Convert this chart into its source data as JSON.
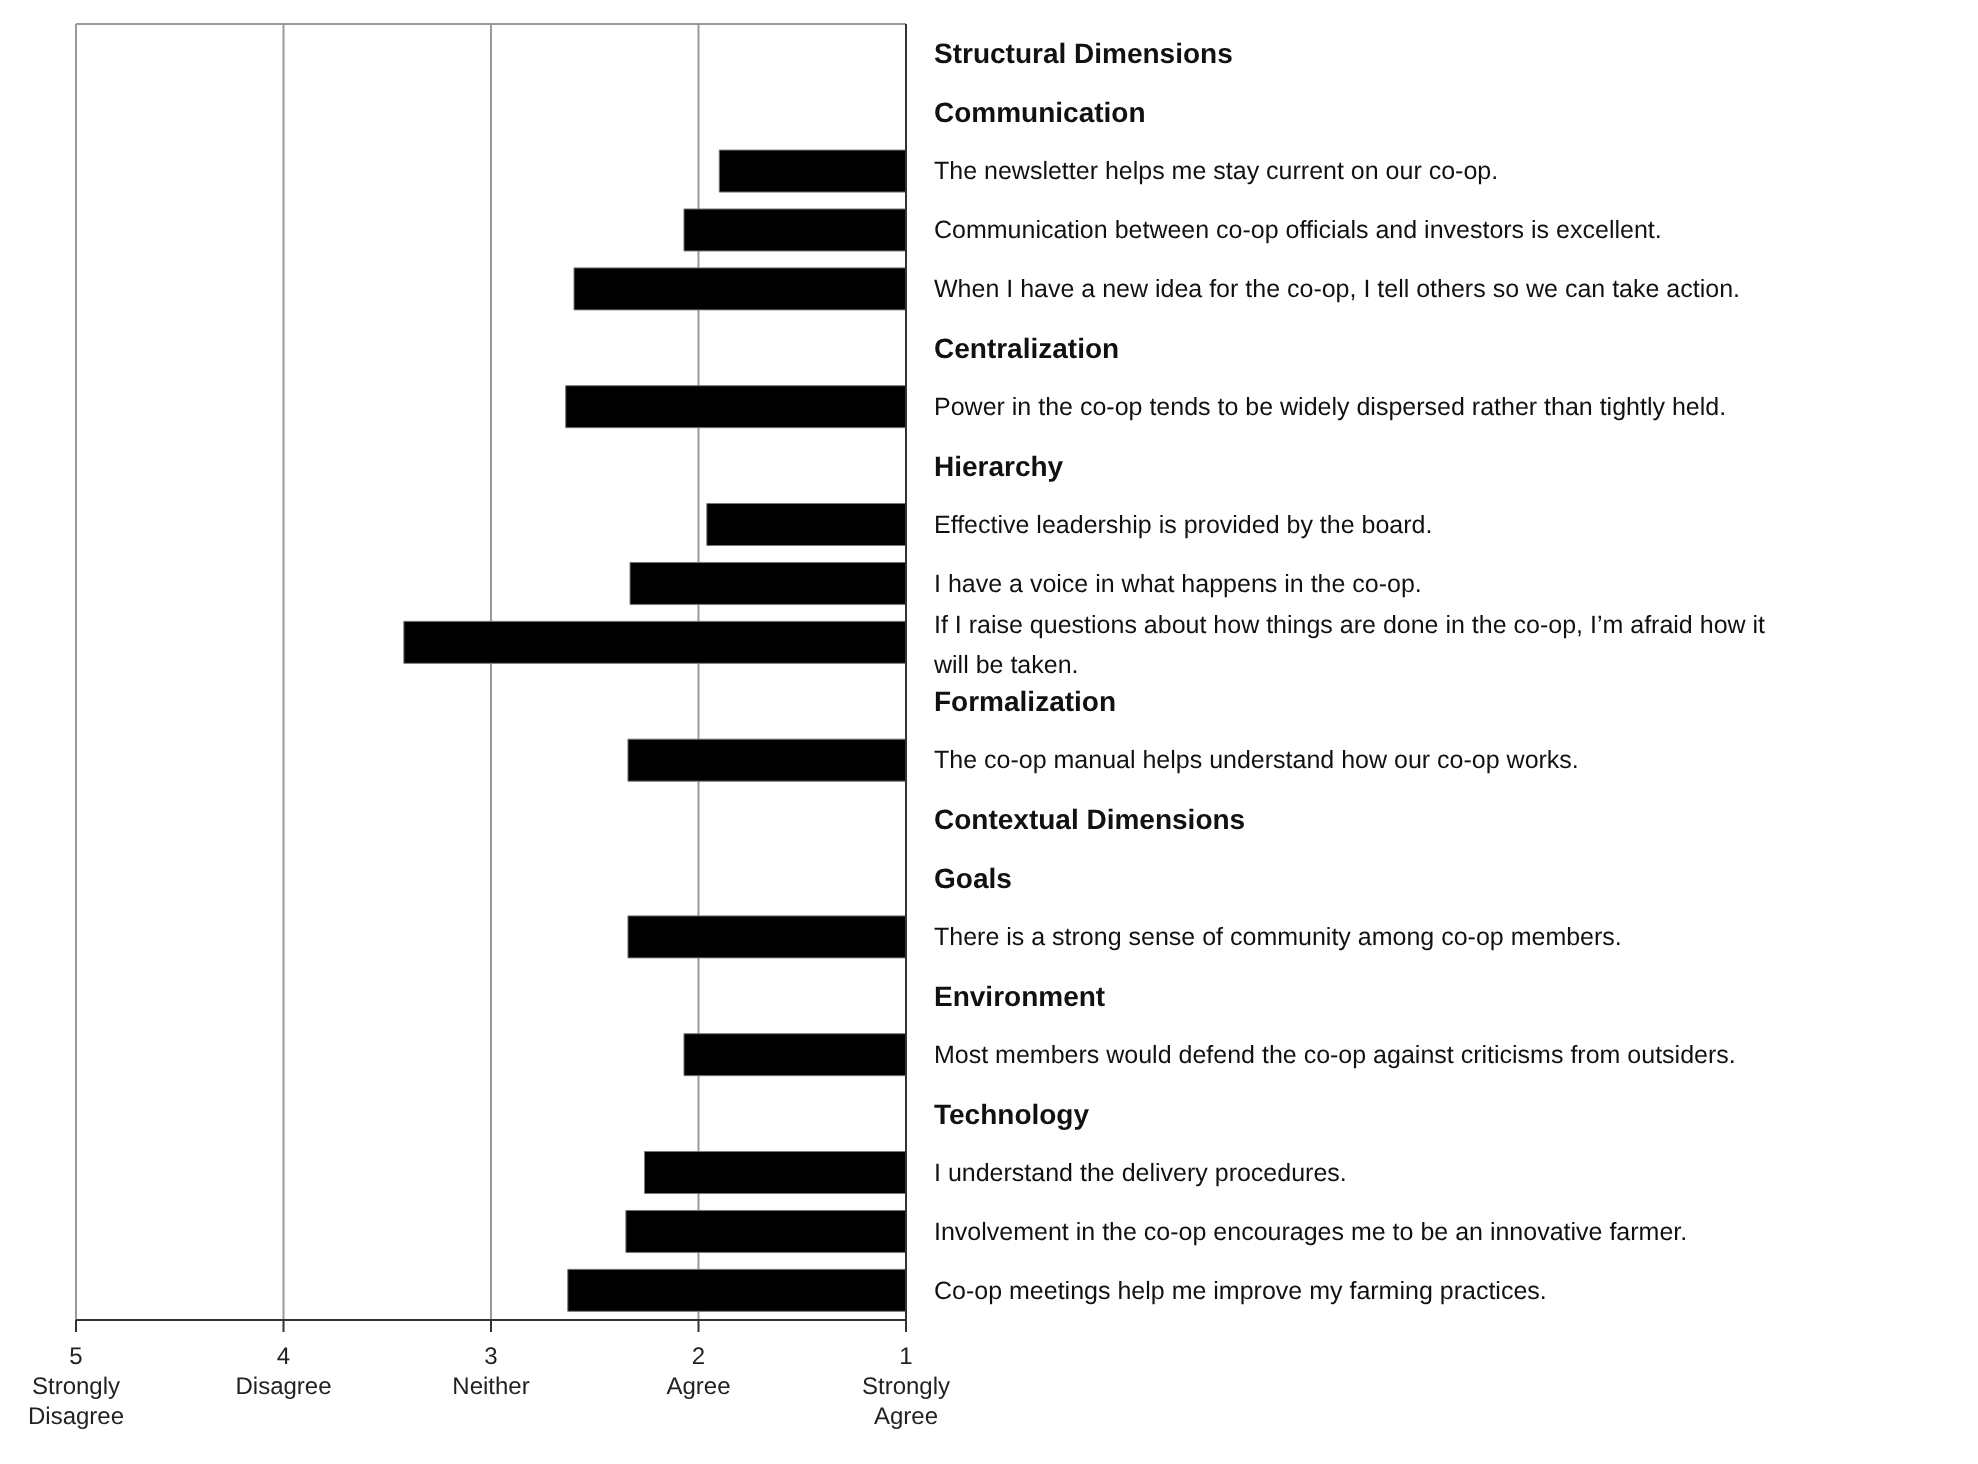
{
  "chart_data": {
    "type": "bar",
    "orientation": "horizontal",
    "categories": [
      "Structural Dimensions",
      "Communication",
      "The newsletter helps me stay current on our co-op.",
      "Communication between co-op officials and investors is excellent.",
      "When I have a new idea for the co-op, I tell others so we can take action.",
      "Centralization",
      "Power in the co-op tends to be widely dispersed rather than tightly held.",
      "Hierarchy",
      "Effective leadership is provided by the board.",
      "I have a voice in what happens in the co-op.",
      "If I raise questions about how things are done in the co-op, I’m afraid how it will be taken.",
      "Formalization",
      "The co-op manual helps understand how our co-op works.",
      "Contextual Dimensions",
      "Goals",
      "There is a strong sense of community among co-op members.",
      "Environment",
      "Most members would defend the co-op against criticisms from outsiders.",
      "Technology",
      "I understand the delivery procedures.",
      "Involvement in the co-op encourages me to be an innovative farmer.",
      "Co-op meetings help me improve my farming practices."
    ],
    "values": [
      null,
      null,
      1.9,
      2.07,
      2.6,
      null,
      2.64,
      null,
      1.96,
      2.33,
      3.42,
      null,
      2.34,
      null,
      null,
      2.34,
      null,
      2.07,
      null,
      2.26,
      2.35,
      2.63
    ],
    "color": "#000000",
    "xlim": [
      5,
      1
    ],
    "xticks": [
      {
        "value": 5,
        "label": "5\nStrongly\nDisagree"
      },
      {
        "value": 4,
        "label": "4\nDisagree"
      },
      {
        "value": 3,
        "label": "3\nNeither"
      },
      {
        "value": 2,
        "label": "2\nAgree"
      },
      {
        "value": 1,
        "label": "1\nStrongly\nAgree"
      }
    ],
    "grid": "x",
    "legend": false
  }
}
